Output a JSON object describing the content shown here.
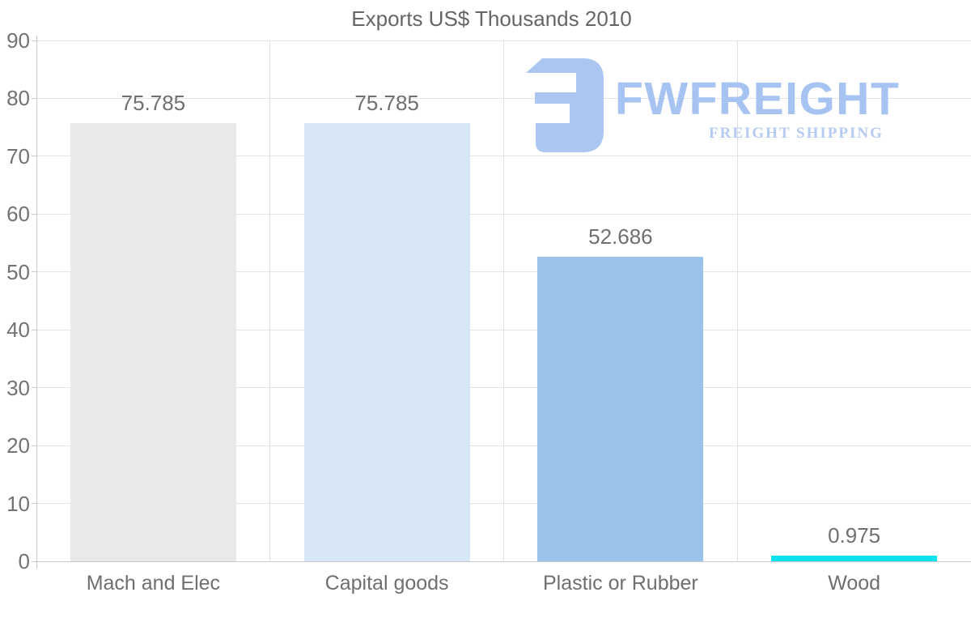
{
  "chart_data": {
    "type": "bar",
    "title": "Exports US$ Thousands 2010",
    "categories": [
      "Mach and Elec",
      "Capital goods",
      "Plastic or Rubber",
      "Wood"
    ],
    "values": [
      75.785,
      75.785,
      52.686,
      0.975
    ],
    "value_labels": [
      "75.785",
      "75.785",
      "52.686",
      "0.975"
    ],
    "bar_colors": [
      "#e9e9e9",
      "#d8e7f8",
      "#99c3e8",
      "#0ce2ee"
    ],
    "xlabel": "",
    "ylabel": "",
    "ylim": [
      0,
      90
    ],
    "ytick_step": 10,
    "ytick_labels": [
      "0",
      "10",
      "20",
      "30",
      "40",
      "50",
      "60",
      "70",
      "80",
      "90"
    ],
    "grid": true,
    "legend": false
  },
  "watermark": {
    "brand": "FWFREIGHT",
    "tagline": "FREIGHT SHIPPING",
    "logo_icon": "fwfreight-mark",
    "brand_color": "#a6c3f1",
    "tagline_color": "#b6cbf1",
    "icon_color": "#abc6f1"
  },
  "colors": {
    "axis_line": "#c9c9c9",
    "gridline_h": "#e4e4e4",
    "gridline_v": "#e0e0e0",
    "title_text": "#666666",
    "label_text": "#707070"
  }
}
